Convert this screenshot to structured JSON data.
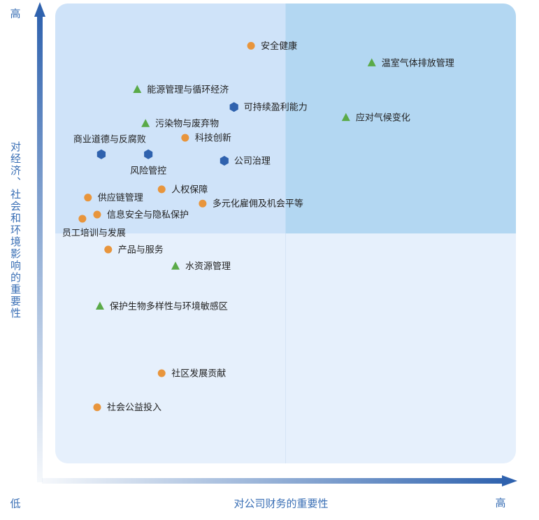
{
  "chart_data": {
    "type": "scatter",
    "x_label": "对公司财务的重要性",
    "y_label": "对经济、社会和环境影响的重要性",
    "axis_end_labels": {
      "y_high": "高",
      "low": "低",
      "x_high": "高"
    },
    "xlim": [
      0,
      100
    ],
    "ylim": [
      0,
      100
    ],
    "quadrant_colors": {
      "top_left": "#cfe3f9",
      "top_right": "#b3d7f2",
      "bottom": "#e6f0fc"
    },
    "series": [
      {
        "marker": "circle",
        "color": "#e8953c",
        "labels": [
          "安全健康",
          "科技创新",
          "人权保障",
          "供应链管理",
          "多元化雇佣及机会平等",
          "信息安全与隐私保护",
          "员工培训与发展",
          "产品与服务",
          "社区发展贡献",
          "社会公益投入"
        ],
        "x": [
          42.5,
          28.2,
          23.1,
          7.1,
          32.0,
          9.1,
          5.9,
          11.5,
          23.1,
          9.1
        ],
        "y": [
          90.8,
          70.8,
          59.6,
          57.8,
          56.5,
          54.1,
          53.2,
          46.5,
          19.6,
          12.2
        ]
      },
      {
        "marker": "triangle",
        "color": "#5aaa48",
        "labels": [
          "温室气体排放管理",
          "能源管理与循环经济",
          "应对气候变化",
          "污染物与废弃物",
          "水资源管理",
          "保护生物多样性与环境敏感区"
        ],
        "x": [
          68.7,
          17.8,
          63.1,
          19.6,
          26.1,
          9.7
        ],
        "y": [
          87.1,
          81.3,
          75.2,
          73.9,
          42.9,
          34.2
        ]
      },
      {
        "marker": "hexagon",
        "color": "#2f62ae",
        "labels": [
          "可持续盈利能力",
          "商业道德与反腐败",
          "风险管控",
          "公司治理"
        ],
        "x": [
          38.8,
          10.0,
          20.2,
          36.7
        ],
        "y": [
          77.5,
          67.2,
          67.2,
          65.8
        ]
      }
    ]
  }
}
